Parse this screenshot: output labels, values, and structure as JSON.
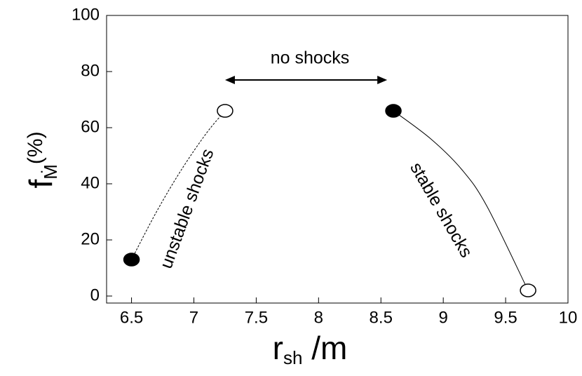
{
  "chart_data": {
    "type": "line",
    "xlabel": {
      "text": "r",
      "sub": "sh",
      "suffix": " /m"
    },
    "ylabel": {
      "text": "f",
      "sub": "Ṁ",
      "suffix": "(%)"
    },
    "xlim": [
      6.3,
      10
    ],
    "ylim": [
      -2.5,
      100
    ],
    "xticks": [
      6.5,
      7,
      7.5,
      8,
      8.5,
      9,
      9.5,
      10
    ],
    "yticks": [
      0,
      20,
      40,
      60,
      80,
      100
    ],
    "series": [
      {
        "color": "#000000",
        "dash": true,
        "x": [
          6.5,
          6.7,
          6.9,
          7.1,
          7.25
        ],
        "values": [
          13,
          30,
          45,
          58,
          66
        ]
      },
      {
        "color": "#000000",
        "dash": false,
        "x": [
          8.6,
          8.9,
          9.15,
          9.35,
          9.68
        ],
        "values": [
          66,
          56,
          45,
          32,
          2
        ]
      }
    ],
    "points": [
      {
        "x": 6.5,
        "y": 13,
        "filled": true
      },
      {
        "x": 7.25,
        "y": 66,
        "filled": false
      },
      {
        "x": 8.6,
        "y": 66,
        "filled": true
      },
      {
        "x": 9.68,
        "y": 2,
        "filled": false
      }
    ],
    "annotations": [
      {
        "text": "no shocks",
        "x": [
          7.25,
          8.55
        ],
        "y": 77
      },
      {
        "text": "unstable shocks"
      },
      {
        "text": "stable shocks"
      }
    ]
  }
}
